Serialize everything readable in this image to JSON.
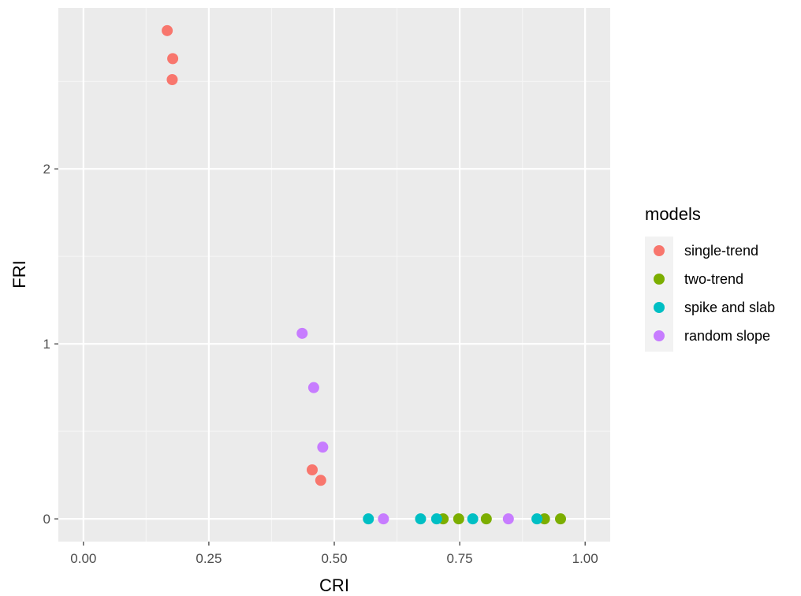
{
  "chart_data": {
    "type": "scatter",
    "xlabel": "CRI",
    "ylabel": "FRI",
    "xlim": [
      -0.05,
      1.05
    ],
    "ylim": [
      -0.13,
      2.92
    ],
    "x_ticks": [
      0,
      0.25,
      0.5,
      0.75,
      1.0
    ],
    "x_tick_labels": [
      "0.00",
      "0.25",
      "0.50",
      "0.75",
      "1.00"
    ],
    "y_ticks": [
      0,
      1,
      2
    ],
    "y_tick_labels": [
      "0",
      "1",
      "2"
    ],
    "grid": true,
    "background": "#ebebeb",
    "legend": {
      "title": "models",
      "position": "right"
    },
    "series": [
      {
        "name": "single-trend",
        "color": "#f8766d",
        "points": [
          [
            0.167,
            2.79
          ],
          [
            0.178,
            2.63
          ],
          [
            0.177,
            2.51
          ],
          [
            0.456,
            0.28
          ],
          [
            0.473,
            0.22
          ]
        ]
      },
      {
        "name": "two-trend",
        "color": "#7cae00",
        "points": [
          [
            0.717,
            0.0
          ],
          [
            0.748,
            0.0
          ],
          [
            0.803,
            0.0
          ],
          [
            0.919,
            0.0
          ],
          [
            0.951,
            0.0
          ]
        ]
      },
      {
        "name": "spike and slab",
        "color": "#00bfc4",
        "points": [
          [
            0.568,
            0.0
          ],
          [
            0.672,
            0.0
          ],
          [
            0.704,
            0.0
          ],
          [
            0.776,
            0.0
          ],
          [
            0.904,
            0.0
          ]
        ]
      },
      {
        "name": "random slope",
        "color": "#c77cff",
        "points": [
          [
            0.436,
            1.06
          ],
          [
            0.459,
            0.75
          ],
          [
            0.477,
            0.41
          ],
          [
            0.598,
            0.0
          ],
          [
            0.847,
            0.0
          ]
        ]
      }
    ]
  }
}
